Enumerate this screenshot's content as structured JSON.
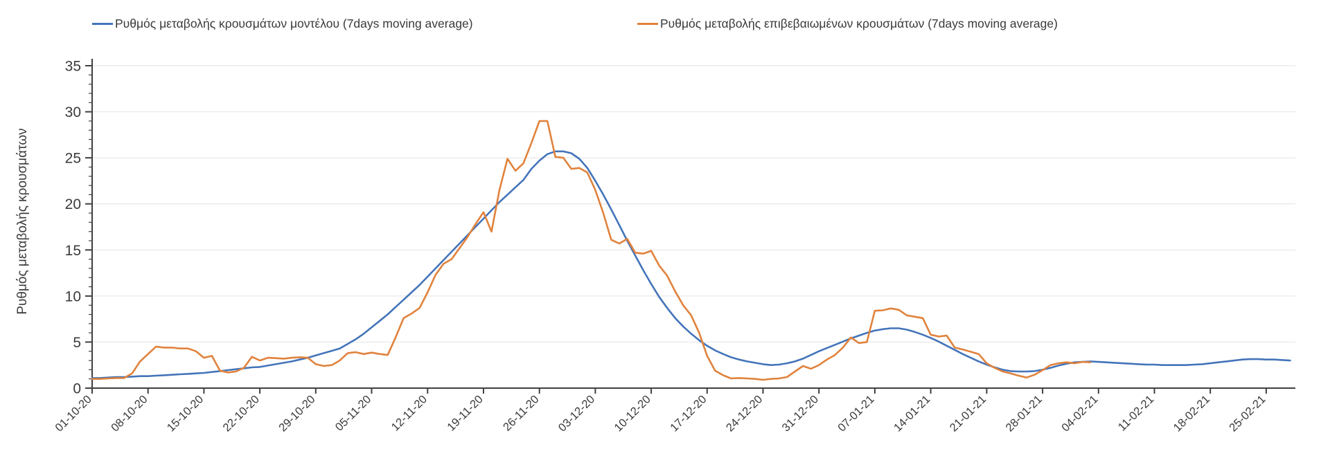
{
  "page": {
    "background": "#ffffff"
  },
  "legend": {
    "items": [
      {
        "label": "Ρυθμός μεταβολής κρουσμάτων μοντέλου (7days moving average)",
        "color": "#4374b9"
      },
      {
        "label": "Ρυθμός μεταβολής επιβεβαιωμένων κρουσμάτων (7days moving average)",
        "color": "#e0823c"
      }
    ]
  },
  "axis": {
    "color": "#3f3f3f",
    "grid_color": "#e2e2e2",
    "tick_label_color": "#3a3a3a"
  },
  "chart_data": {
    "type": "line",
    "title": "",
    "xlabel": "",
    "ylabel": "Ρυθμός μεταβολής κρουσμάτων",
    "ylim": [
      0,
      35
    ],
    "y_ticks": [
      0,
      5,
      10,
      15,
      20,
      25,
      30,
      35
    ],
    "y_minor_step": 1,
    "grid": "horizontal",
    "legend_position": "top",
    "x_tick_interval_days": 7,
    "x_tick_labels": [
      "01-10-20",
      "08-10-20",
      "15-10-20",
      "22-10-20",
      "29-10-20",
      "05-11-20",
      "12-11-20",
      "19-11-20",
      "26-11-20",
      "03-12-20",
      "10-12-20",
      "17-12-20",
      "24-12-20",
      "31-12-20",
      "07-01-21",
      "14-01-21",
      "21-01-21",
      "28-01-21",
      "04-02-21",
      "11-02-21",
      "18-02-21",
      "25-02-21"
    ],
    "series": [
      {
        "name": "Ρυθμός μεταβολής κρουσμάτων μοντέλου (7days moving average)",
        "color": "#4374b9",
        "start_date": "01-10-20",
        "values": [
          1.1,
          1.1,
          1.15,
          1.2,
          1.2,
          1.25,
          1.3,
          1.3,
          1.35,
          1.4,
          1.45,
          1.5,
          1.55,
          1.6,
          1.65,
          1.75,
          1.85,
          1.95,
          2.05,
          2.15,
          2.25,
          2.3,
          2.45,
          2.6,
          2.75,
          2.9,
          3.1,
          3.3,
          3.55,
          3.8,
          4.05,
          4.3,
          4.8,
          5.3,
          5.9,
          6.6,
          7.3,
          8.0,
          8.8,
          9.6,
          10.4,
          11.2,
          12.1,
          13.0,
          13.9,
          14.8,
          15.7,
          16.6,
          17.5,
          18.4,
          19.3,
          20.2,
          21.0,
          21.8,
          22.6,
          23.8,
          24.7,
          25.4,
          25.7,
          25.7,
          25.5,
          24.9,
          23.9,
          22.5,
          21.0,
          19.4,
          17.7,
          16.0,
          14.4,
          12.8,
          11.3,
          9.9,
          8.7,
          7.6,
          6.7,
          5.9,
          5.2,
          4.6,
          4.1,
          3.7,
          3.35,
          3.1,
          2.9,
          2.75,
          2.6,
          2.5,
          2.55,
          2.7,
          2.9,
          3.2,
          3.6,
          4.0,
          4.35,
          4.7,
          5.05,
          5.4,
          5.7,
          6.0,
          6.25,
          6.4,
          6.5,
          6.5,
          6.35,
          6.1,
          5.8,
          5.45,
          5.05,
          4.6,
          4.15,
          3.7,
          3.3,
          2.9,
          2.55,
          2.25,
          2.0,
          1.85,
          1.8,
          1.8,
          1.85,
          2.0,
          2.2,
          2.45,
          2.65,
          2.8,
          2.85,
          2.9,
          2.85,
          2.8,
          2.75,
          2.7,
          2.65,
          2.6,
          2.55,
          2.55,
          2.5,
          2.5,
          2.5,
          2.5,
          2.55,
          2.6,
          2.7,
          2.8,
          2.9,
          3.0,
          3.1,
          3.15,
          3.15,
          3.1,
          3.1,
          3.05,
          3.0
        ]
      },
      {
        "name": "Ρυθμός μεταβολής επιβεβαιωμένων κρουσμάτων (7days moving average)",
        "color": "#e0823c",
        "start_date": "01-10-20",
        "values": [
          1.0,
          1.0,
          1.05,
          1.1,
          1.1,
          1.6,
          2.9,
          3.7,
          4.5,
          4.4,
          4.4,
          4.3,
          4.3,
          4.0,
          3.3,
          3.5,
          1.9,
          1.7,
          1.8,
          2.2,
          3.4,
          3.0,
          3.3,
          3.25,
          3.2,
          3.3,
          3.35,
          3.3,
          2.6,
          2.4,
          2.5,
          3.0,
          3.8,
          3.9,
          3.7,
          3.85,
          3.7,
          3.6,
          5.5,
          7.6,
          8.1,
          8.7,
          10.4,
          12.3,
          13.5,
          14.0,
          15.2,
          16.4,
          17.8,
          19.1,
          17.0,
          21.5,
          24.9,
          23.6,
          24.4,
          26.6,
          29.0,
          29.0,
          25.1,
          25.0,
          23.8,
          23.9,
          23.4,
          21.5,
          19.0,
          16.1,
          15.7,
          16.2,
          14.7,
          14.6,
          14.9,
          13.3,
          12.2,
          10.5,
          9.0,
          7.9,
          6.0,
          3.5,
          1.9,
          1.4,
          1.05,
          1.1,
          1.05,
          1.0,
          0.9,
          1.0,
          1.05,
          1.2,
          1.8,
          2.4,
          2.1,
          2.5,
          3.1,
          3.6,
          4.4,
          5.5,
          4.9,
          5.0,
          8.4,
          8.45,
          8.65,
          8.5,
          7.9,
          7.75,
          7.6,
          5.8,
          5.6,
          5.7,
          4.4,
          4.2,
          3.95,
          3.7,
          2.7,
          2.2,
          1.8,
          1.6,
          1.35,
          1.15,
          1.45,
          1.95,
          2.5,
          2.7,
          2.8,
          2.7,
          2.85,
          2.8
        ]
      }
    ]
  }
}
